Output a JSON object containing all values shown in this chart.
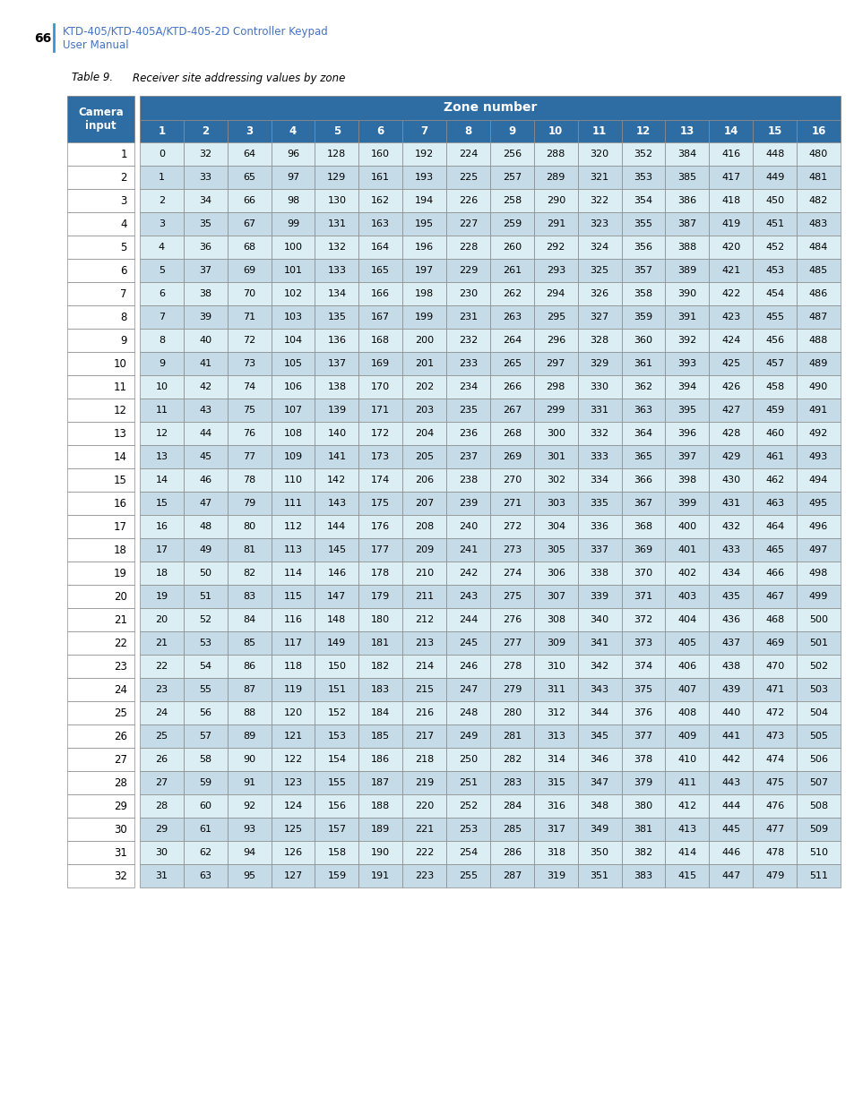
{
  "page_number": "66",
  "page_link_text": "KTD-405/KTD-405A/KTD-405-2D Controller Keypad\nUser Manual",
  "table_title": "Table 9.",
  "table_title2": "Receiver site addressing values by zone",
  "zone_header": "Zone number",
  "col_header_label": "Camera\ninput",
  "zone_cols": [
    "1",
    "2",
    "3",
    "4",
    "5",
    "6",
    "7",
    "8",
    "9",
    "10",
    "11",
    "12",
    "13",
    "14",
    "15",
    "16"
  ],
  "camera_inputs": [
    1,
    2,
    3,
    4,
    5,
    6,
    7,
    8,
    9,
    10,
    11,
    12,
    13,
    14,
    15,
    16,
    17,
    18,
    19,
    20,
    21,
    22,
    23,
    24,
    25,
    26,
    27,
    28,
    29,
    30,
    31,
    32
  ],
  "table_data": [
    [
      0,
      32,
      64,
      96,
      128,
      160,
      192,
      224,
      256,
      288,
      320,
      352,
      384,
      416,
      448,
      480
    ],
    [
      1,
      33,
      65,
      97,
      129,
      161,
      193,
      225,
      257,
      289,
      321,
      353,
      385,
      417,
      449,
      481
    ],
    [
      2,
      34,
      66,
      98,
      130,
      162,
      194,
      226,
      258,
      290,
      322,
      354,
      386,
      418,
      450,
      482
    ],
    [
      3,
      35,
      67,
      99,
      131,
      163,
      195,
      227,
      259,
      291,
      323,
      355,
      387,
      419,
      451,
      483
    ],
    [
      4,
      36,
      68,
      100,
      132,
      164,
      196,
      228,
      260,
      292,
      324,
      356,
      388,
      420,
      452,
      484
    ],
    [
      5,
      37,
      69,
      101,
      133,
      165,
      197,
      229,
      261,
      293,
      325,
      357,
      389,
      421,
      453,
      485
    ],
    [
      6,
      38,
      70,
      102,
      134,
      166,
      198,
      230,
      262,
      294,
      326,
      358,
      390,
      422,
      454,
      486
    ],
    [
      7,
      39,
      71,
      103,
      135,
      167,
      199,
      231,
      263,
      295,
      327,
      359,
      391,
      423,
      455,
      487
    ],
    [
      8,
      40,
      72,
      104,
      136,
      168,
      200,
      232,
      264,
      296,
      328,
      360,
      392,
      424,
      456,
      488
    ],
    [
      9,
      41,
      73,
      105,
      137,
      169,
      201,
      233,
      265,
      297,
      329,
      361,
      393,
      425,
      457,
      489
    ],
    [
      10,
      42,
      74,
      106,
      138,
      170,
      202,
      234,
      266,
      298,
      330,
      362,
      394,
      426,
      458,
      490
    ],
    [
      11,
      43,
      75,
      107,
      139,
      171,
      203,
      235,
      267,
      299,
      331,
      363,
      395,
      427,
      459,
      491
    ],
    [
      12,
      44,
      76,
      108,
      140,
      172,
      204,
      236,
      268,
      300,
      332,
      364,
      396,
      428,
      460,
      492
    ],
    [
      13,
      45,
      77,
      109,
      141,
      173,
      205,
      237,
      269,
      301,
      333,
      365,
      397,
      429,
      461,
      493
    ],
    [
      14,
      46,
      78,
      110,
      142,
      174,
      206,
      238,
      270,
      302,
      334,
      366,
      398,
      430,
      462,
      494
    ],
    [
      15,
      47,
      79,
      111,
      143,
      175,
      207,
      239,
      271,
      303,
      335,
      367,
      399,
      431,
      463,
      495
    ],
    [
      16,
      48,
      80,
      112,
      144,
      176,
      208,
      240,
      272,
      304,
      336,
      368,
      400,
      432,
      464,
      496
    ],
    [
      17,
      49,
      81,
      113,
      145,
      177,
      209,
      241,
      273,
      305,
      337,
      369,
      401,
      433,
      465,
      497
    ],
    [
      18,
      50,
      82,
      114,
      146,
      178,
      210,
      242,
      274,
      306,
      338,
      370,
      402,
      434,
      466,
      498
    ],
    [
      19,
      51,
      83,
      115,
      147,
      179,
      211,
      243,
      275,
      307,
      339,
      371,
      403,
      435,
      467,
      499
    ],
    [
      20,
      52,
      84,
      116,
      148,
      180,
      212,
      244,
      276,
      308,
      340,
      372,
      404,
      436,
      468,
      500
    ],
    [
      21,
      53,
      85,
      117,
      149,
      181,
      213,
      245,
      277,
      309,
      341,
      373,
      405,
      437,
      469,
      501
    ],
    [
      22,
      54,
      86,
      118,
      150,
      182,
      214,
      246,
      278,
      310,
      342,
      374,
      406,
      438,
      470,
      502
    ],
    [
      23,
      55,
      87,
      119,
      151,
      183,
      215,
      247,
      279,
      311,
      343,
      375,
      407,
      439,
      471,
      503
    ],
    [
      24,
      56,
      88,
      120,
      152,
      184,
      216,
      248,
      280,
      312,
      344,
      376,
      408,
      440,
      472,
      504
    ],
    [
      25,
      57,
      89,
      121,
      153,
      185,
      217,
      249,
      281,
      313,
      345,
      377,
      409,
      441,
      473,
      505
    ],
    [
      26,
      58,
      90,
      122,
      154,
      186,
      218,
      250,
      282,
      314,
      346,
      378,
      410,
      442,
      474,
      506
    ],
    [
      27,
      59,
      91,
      123,
      155,
      187,
      219,
      251,
      283,
      315,
      347,
      379,
      411,
      443,
      475,
      507
    ],
    [
      28,
      60,
      92,
      124,
      156,
      188,
      220,
      252,
      284,
      316,
      348,
      380,
      412,
      444,
      476,
      508
    ],
    [
      29,
      61,
      93,
      125,
      157,
      189,
      221,
      253,
      285,
      317,
      349,
      381,
      413,
      445,
      477,
      509
    ],
    [
      30,
      62,
      94,
      126,
      158,
      190,
      222,
      254,
      286,
      318,
      350,
      382,
      414,
      446,
      478,
      510
    ],
    [
      31,
      63,
      95,
      127,
      159,
      191,
      223,
      255,
      287,
      319,
      351,
      383,
      415,
      447,
      479,
      511
    ]
  ],
  "header_bg_color": "#2E6DA4",
  "header_text_color": "#FFFFFF",
  "data_bg_color_light": "#DAEEF3",
  "data_bg_color_mid": "#C5DCE8",
  "camera_col_bg": "#FFFFFF",
  "border_color": "#888888",
  "page_text_color": "#4472C4",
  "page_number_color": "#000000",
  "title_color": "#000000",
  "data_text_color": "#000000",
  "background_color": "#FFFFFF"
}
